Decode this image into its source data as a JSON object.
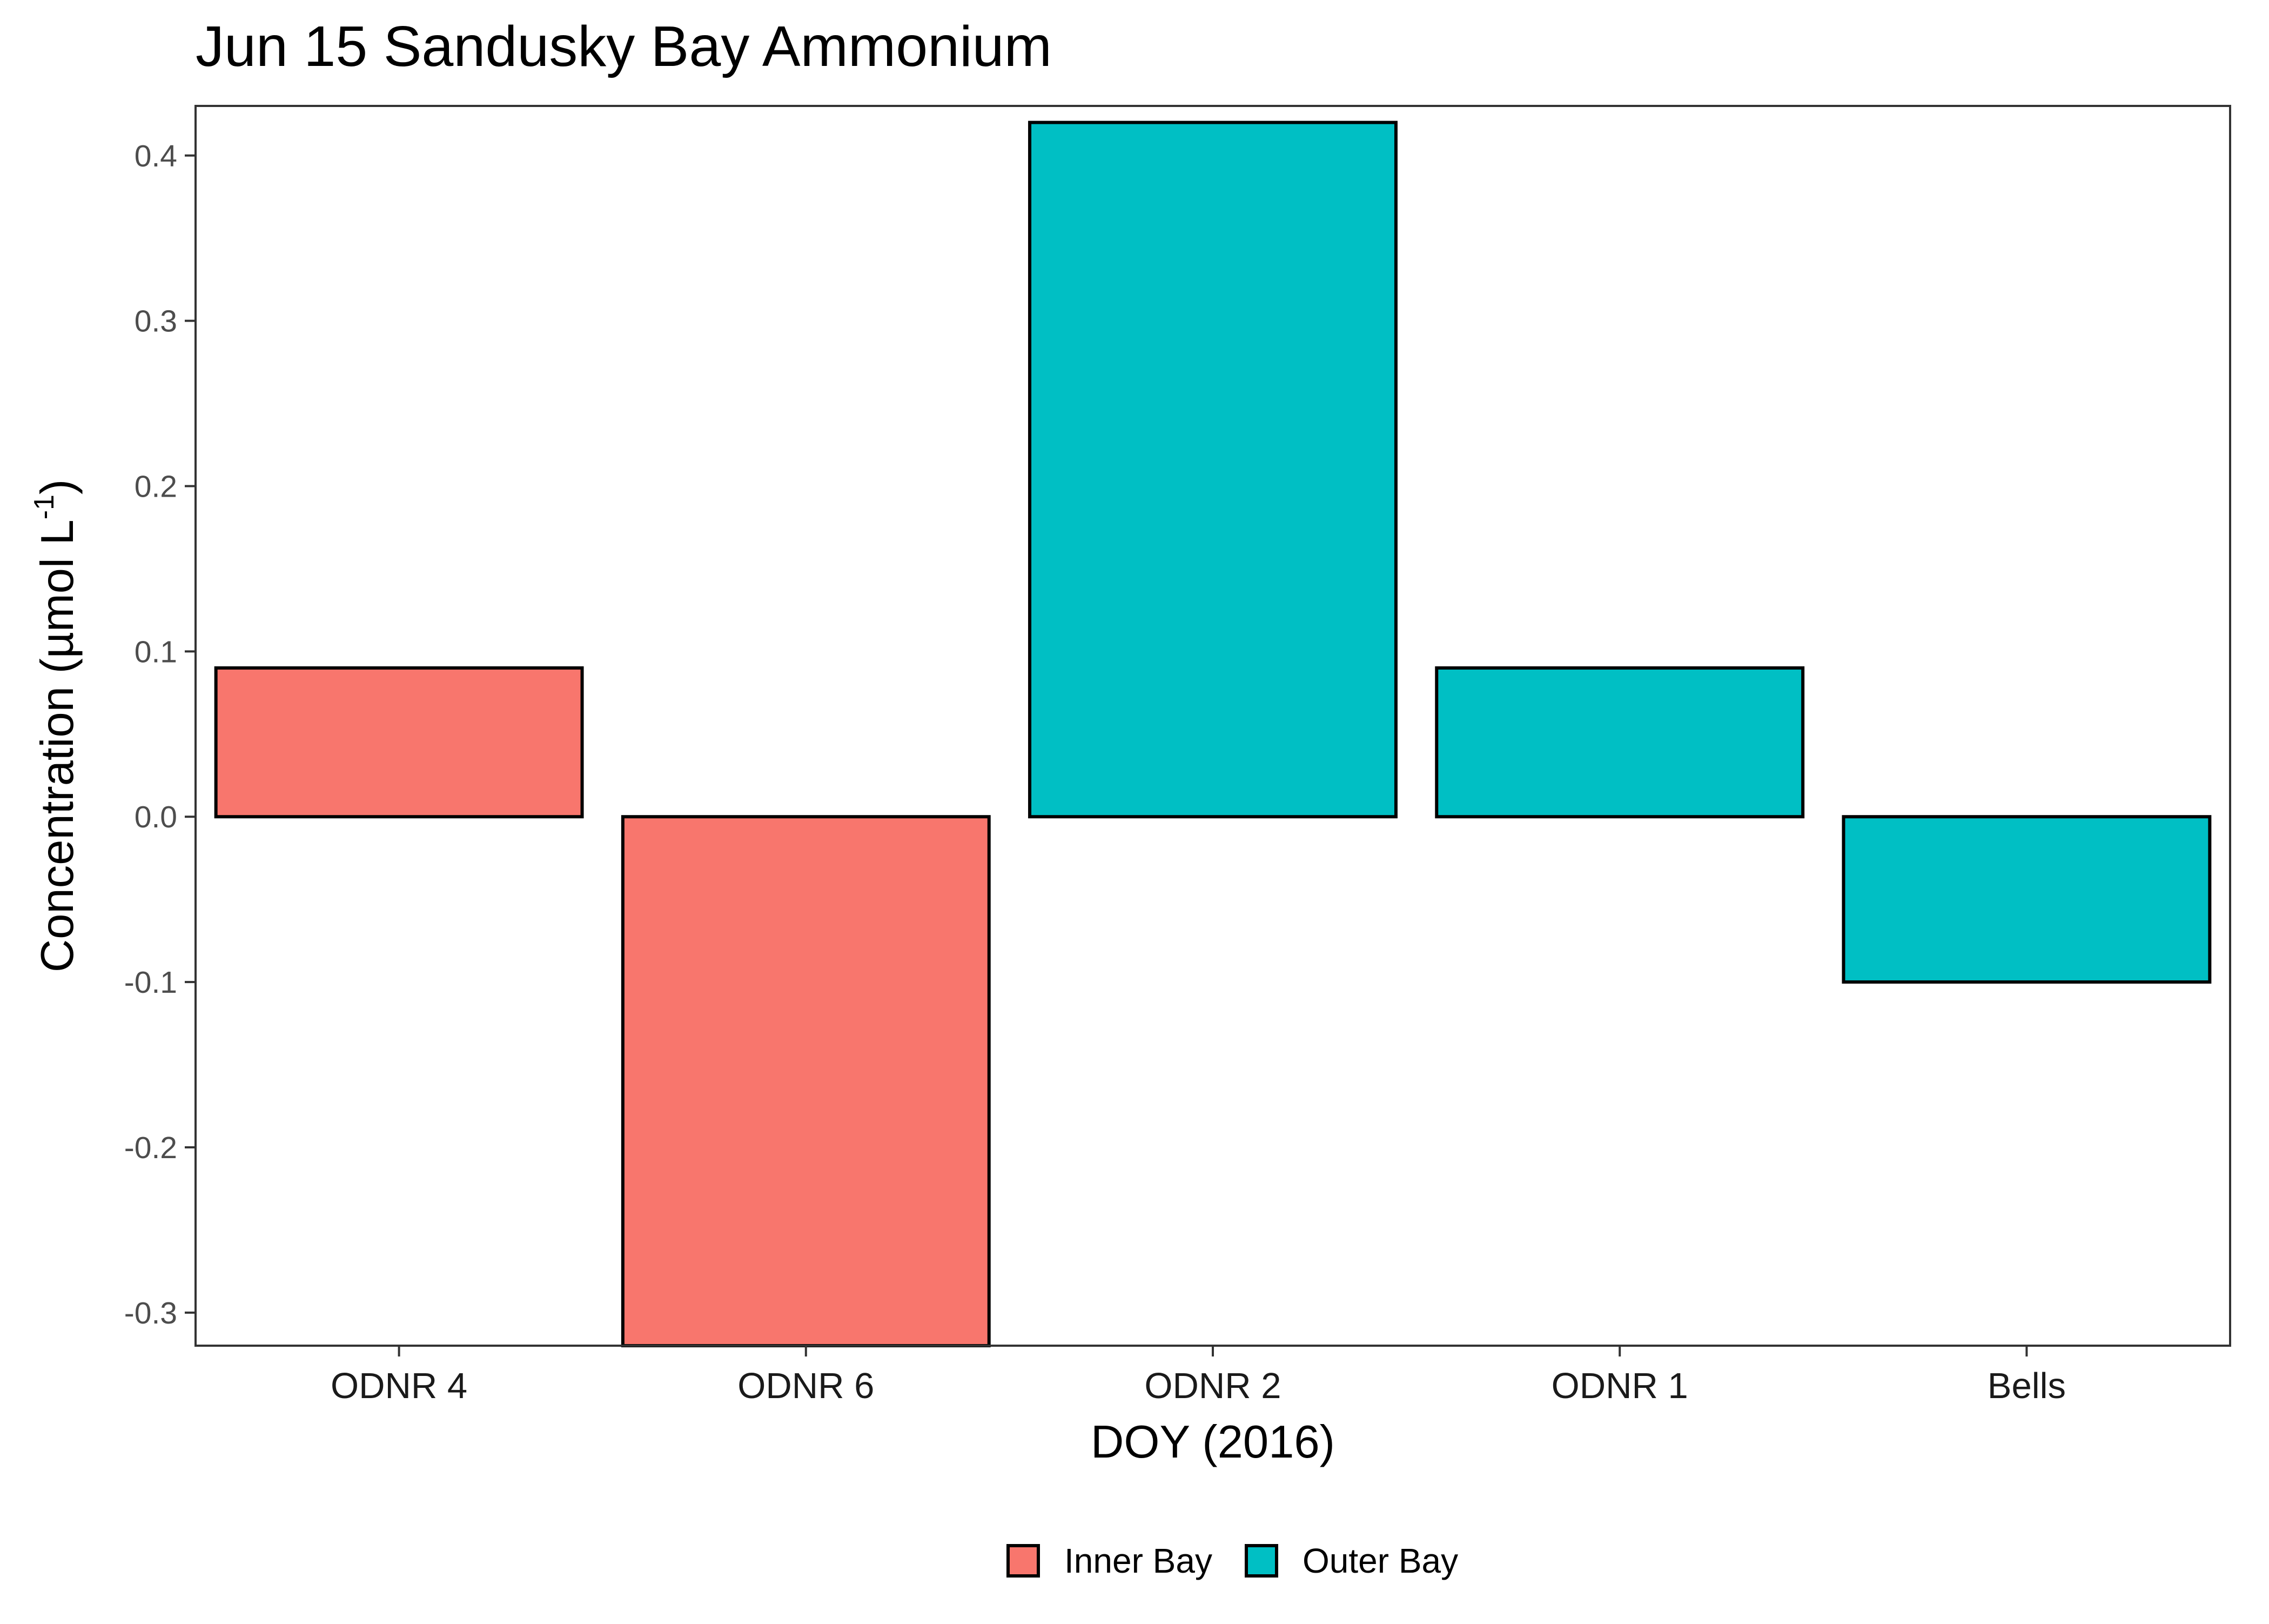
{
  "chart_data": {
    "type": "bar",
    "title": "Jun 15 Sandusky Bay Ammonium",
    "xlabel": "DOY (2016)",
    "ylabel": {
      "main": "Concentration (µmol L",
      "superscript": "-1",
      "close": ")"
    },
    "categories": [
      "ODNR 4",
      "ODNR 6",
      "ODNR 2",
      "ODNR 1",
      "Bells"
    ],
    "values": [
      0.09,
      -0.32,
      0.42,
      0.09,
      -0.1
    ],
    "groups": [
      "Inner Bay",
      "Inner Bay",
      "Outer Bay",
      "Outer Bay",
      "Outer Bay"
    ],
    "ylim": [
      -0.32,
      0.43
    ],
    "yticks": [
      -0.3,
      -0.2,
      -0.1,
      0.0,
      0.1,
      0.2,
      0.3,
      0.4
    ],
    "ytick_labels": [
      "-0.3",
      "-0.2",
      "-0.1",
      "0.0",
      "0.1",
      "0.2",
      "0.3",
      "0.4"
    ],
    "grid": false,
    "legend_position": "bottom",
    "legend": [
      {
        "name": "Inner Bay",
        "color": "#F8766D"
      },
      {
        "name": "Outer Bay",
        "color": "#00BFC4"
      }
    ]
  }
}
